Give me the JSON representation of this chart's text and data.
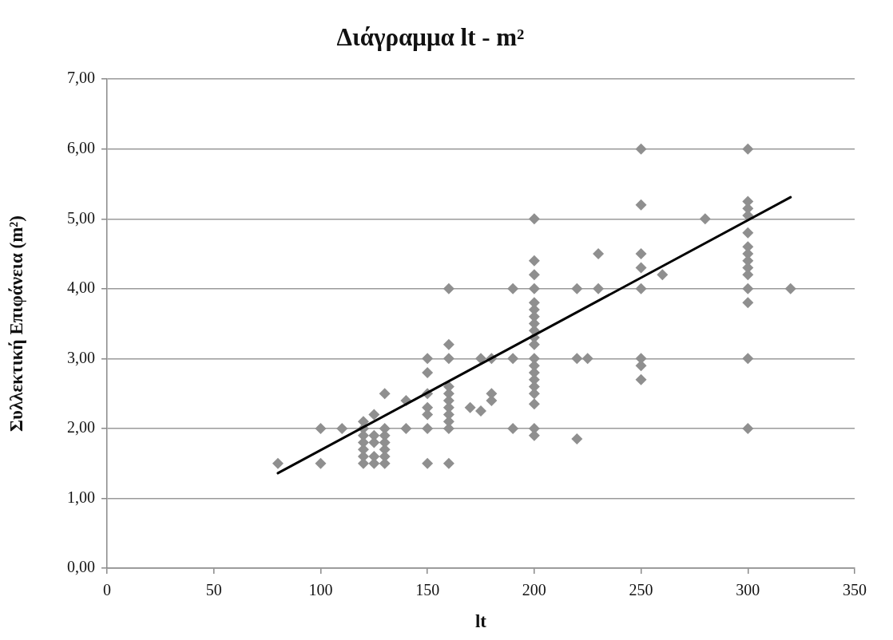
{
  "chart_data": {
    "type": "scatter",
    "title": "Διάγραμμα lt - m²",
    "xlabel": "lt",
    "ylabel": "Συλλεκτική Επιφάνεια (m²)",
    "xlim": [
      0,
      350
    ],
    "xticks": [
      0,
      50,
      100,
      150,
      200,
      250,
      300,
      350
    ],
    "ylim": [
      0,
      7
    ],
    "yticks": [
      {
        "value": 0,
        "label": "0,00"
      },
      {
        "value": 1,
        "label": "1,00"
      },
      {
        "value": 2,
        "label": "2,00"
      },
      {
        "value": 3,
        "label": "3,00"
      },
      {
        "value": 4,
        "label": "4,00"
      },
      {
        "value": 5,
        "label": "5,00"
      },
      {
        "value": 6,
        "label": "6,00"
      },
      {
        "value": 7,
        "label": "7,00"
      }
    ],
    "grid": "y",
    "marker": "diamond",
    "series": [
      {
        "color": "#8f8f8f",
        "x": [
          80,
          100,
          100,
          110,
          120,
          120,
          120,
          120,
          120,
          120,
          120,
          125,
          125,
          125,
          125,
          125,
          130,
          130,
          130,
          130,
          130,
          130,
          130,
          140,
          140,
          150,
          150,
          150,
          150,
          150,
          150,
          150,
          160,
          160,
          160,
          160,
          160,
          160,
          160,
          160,
          160,
          160,
          160,
          170,
          175,
          175,
          180,
          180,
          180,
          190,
          190,
          190,
          200,
          200,
          200,
          200,
          200,
          200,
          200,
          200,
          200,
          200,
          200,
          200,
          200,
          200,
          200,
          200,
          200,
          200,
          200,
          200,
          220,
          220,
          220,
          225,
          230,
          230,
          250,
          250,
          250,
          250,
          250,
          250,
          250,
          250,
          260,
          280,
          300,
          300,
          300,
          300,
          300,
          300,
          300,
          300,
          300,
          300,
          300,
          300,
          300,
          300,
          320
        ],
        "values": [
          1.5,
          2.0,
          1.5,
          2.0,
          2.1,
          2.0,
          1.9,
          1.8,
          1.7,
          1.6,
          1.5,
          2.2,
          1.9,
          1.8,
          1.6,
          1.5,
          2.5,
          2.0,
          1.9,
          1.8,
          1.7,
          1.6,
          1.5,
          2.4,
          2.0,
          3.0,
          2.8,
          2.5,
          2.3,
          2.2,
          2.0,
          1.5,
          4.0,
          3.2,
          3.0,
          2.6,
          2.5,
          2.4,
          2.3,
          2.2,
          2.1,
          2.0,
          1.5,
          2.3,
          3.0,
          2.25,
          3.0,
          2.5,
          2.4,
          4.0,
          3.0,
          2.0,
          5.0,
          4.4,
          4.2,
          4.0,
          3.8,
          3.7,
          3.6,
          3.5,
          3.4,
          3.3,
          3.2,
          3.0,
          2.9,
          2.8,
          2.7,
          2.6,
          2.5,
          2.35,
          2.0,
          1.9,
          4.0,
          3.0,
          1.85,
          3.0,
          4.5,
          4.0,
          6.0,
          5.2,
          4.5,
          4.3,
          4.0,
          3.0,
          2.9,
          2.7,
          4.2,
          5.0,
          6.0,
          5.25,
          5.15,
          5.05,
          4.8,
          4.6,
          4.5,
          4.4,
          4.3,
          4.2,
          4.0,
          3.8,
          3.0,
          2.0,
          4.0
        ]
      },
      {
        "type": "line",
        "color": "#000000",
        "marker": "none",
        "x": [
          80,
          320
        ],
        "values": [
          1.36,
          5.31
        ]
      }
    ]
  }
}
